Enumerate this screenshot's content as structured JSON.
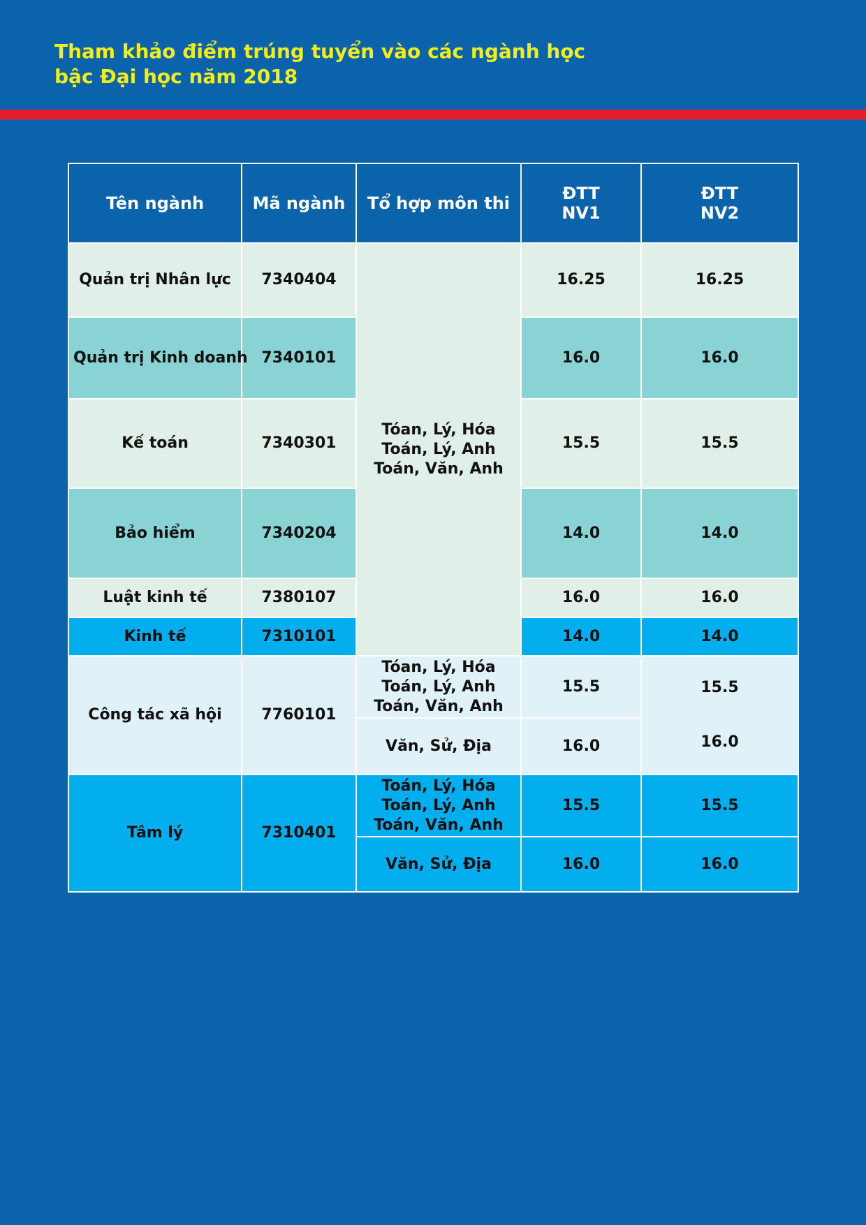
{
  "page": {
    "title_line1": "Tham khảo điểm trúng tuyển vào các ngành học",
    "title_line2": "bậc Đại học năm 2018"
  },
  "table": {
    "headers": {
      "name": "Tên ngành",
      "code": "Mã ngành",
      "combo": "Tổ hợp môn thi",
      "nv1_l1": "ĐTT",
      "nv1_l2": "NV1",
      "nv2_l1": "ĐTT",
      "nv2_l2": "NV2"
    },
    "shared_combo": [
      "Tóan, Lý, Hóa",
      "Toán, Lý, Anh",
      "Toán, Văn, Anh"
    ],
    "rows": [
      {
        "name": "Quản trị Nhân lực",
        "code": "7340404",
        "nv1": "16.25",
        "nv2": "16.25"
      },
      {
        "name": "Quản trị Kinh doanh",
        "code": "7340101",
        "nv1": "16.0",
        "nv2": "16.0"
      },
      {
        "name": "Kế toán",
        "code": "7340301",
        "nv1": "15.5",
        "nv2": "15.5"
      },
      {
        "name": "Bảo hiểm",
        "code": "7340204",
        "nv1": "14.0",
        "nv2": "14.0"
      },
      {
        "name": "Luật kinh tế",
        "code": "7380107",
        "nv1": "16.0",
        "nv2": "16.0"
      },
      {
        "name": "Kinh tế",
        "code": "7310101",
        "nv1": "14.0",
        "nv2": "14.0"
      }
    ],
    "ctxh": {
      "name": "Công tác xã hội",
      "code": "7760101",
      "combo1": [
        "Tóan, Lý, Hóa",
        "Toán, Lý, Anh",
        "Toán, Văn, Anh"
      ],
      "combo2": "Văn, Sử, Địa",
      "nv1_a": "15.5",
      "nv1_b": "16.0",
      "nv2_a": "15.5",
      "nv2_b": "16.0"
    },
    "taml": {
      "name": "Tâm lý",
      "code": "7310401",
      "combo1": [
        "Toán, Lý, Hóa",
        "Toán, Lý, Anh",
        "Toán, Văn, Anh"
      ],
      "combo2": "Văn, Sử, Địa",
      "nv1_a": "15.5",
      "nv1_b": "16.0",
      "nv2_a": "15.5",
      "nv2_b": "16.0"
    }
  }
}
